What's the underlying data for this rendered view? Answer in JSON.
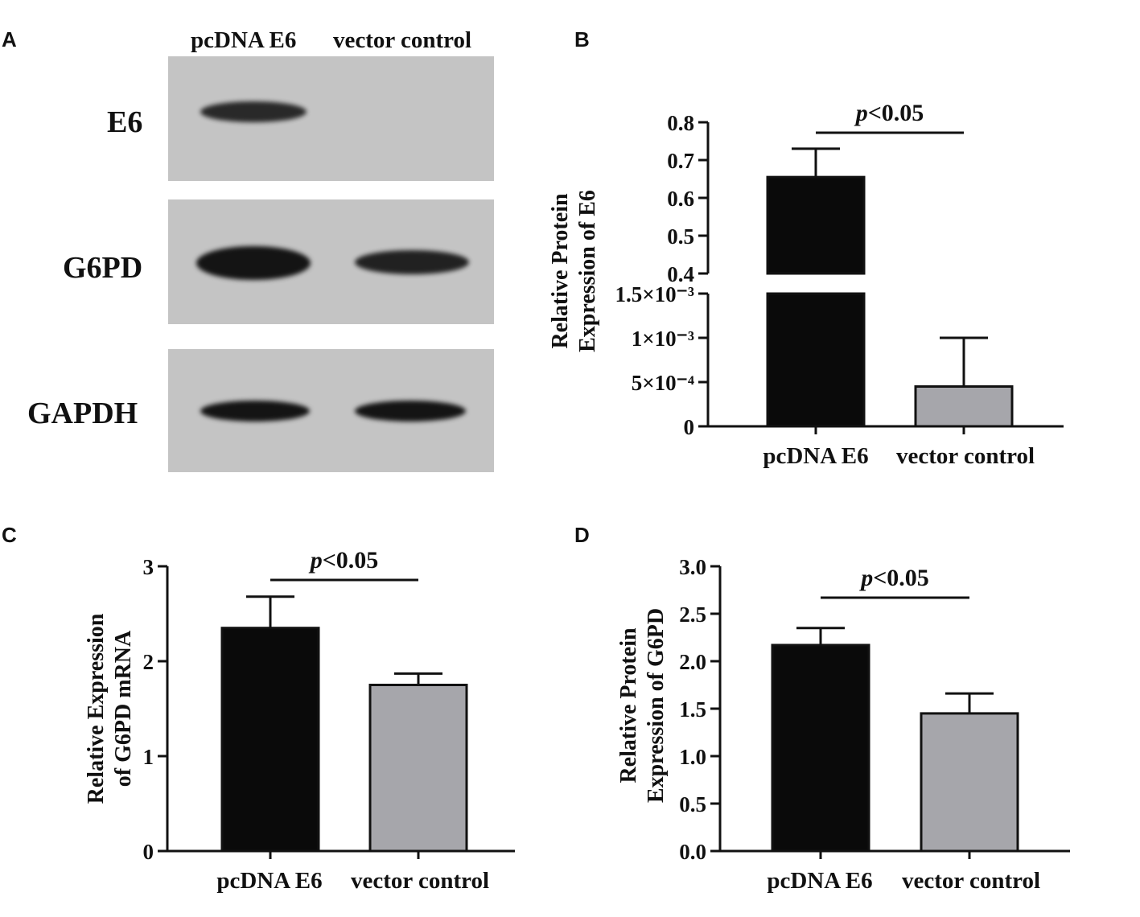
{
  "panels": {
    "a": "A",
    "b": "B",
    "c": "C",
    "d": "D"
  },
  "blot": {
    "lanes": [
      "pcDNA E6",
      "vector control"
    ],
    "rows": [
      "E6",
      "G6PD",
      "GAPDH"
    ]
  },
  "colors": {
    "pcdna_bar": "#0a0a0a",
    "vector_bar": "#a6a6ab",
    "blot_background": "#c4c4c4"
  },
  "chart_data": [
    {
      "panel": "B",
      "type": "bar",
      "categories": [
        "pcDNA E6",
        "vector control"
      ],
      "values": [
        0.655,
        0.00045
      ],
      "errors": [
        0.075,
        0.00055
      ],
      "ylabel": "Relative Protein Expression of E6",
      "y_axis_broken": true,
      "segments": [
        {
          "range": [
            0,
            0.0015
          ],
          "ticks": [
            "0",
            "5×10⁻⁴",
            "1×10⁻³",
            "1.5×10⁻³"
          ]
        },
        {
          "range": [
            0.4,
            0.8
          ],
          "ticks": [
            "0.4",
            "0.5",
            "0.6",
            "0.7",
            "0.8"
          ]
        }
      ],
      "annotation": "p<0.05",
      "grid": false,
      "legend": "none"
    },
    {
      "panel": "C",
      "type": "bar",
      "categories": [
        "pcDNA E6",
        "vector control"
      ],
      "values": [
        2.35,
        1.75
      ],
      "errors": [
        0.33,
        0.12
      ],
      "ylabel": "Relative Expression of G6PD mRNA",
      "ylim": [
        0,
        3
      ],
      "ticks": [
        "0",
        "1",
        "2",
        "3"
      ],
      "annotation": "p<0.05",
      "grid": false,
      "legend": "none"
    },
    {
      "panel": "D",
      "type": "bar",
      "categories": [
        "pcDNA E6",
        "vector control"
      ],
      "values": [
        2.17,
        1.45
      ],
      "errors": [
        0.18,
        0.21
      ],
      "ylabel": "Relative Protein Expression of G6PD",
      "ylim": [
        0,
        3
      ],
      "ticks": [
        "0.0",
        "0.5",
        "1.0",
        "1.5",
        "2.0",
        "2.5",
        "3.0"
      ],
      "annotation": "p<0.05",
      "grid": false,
      "legend": "none"
    }
  ]
}
